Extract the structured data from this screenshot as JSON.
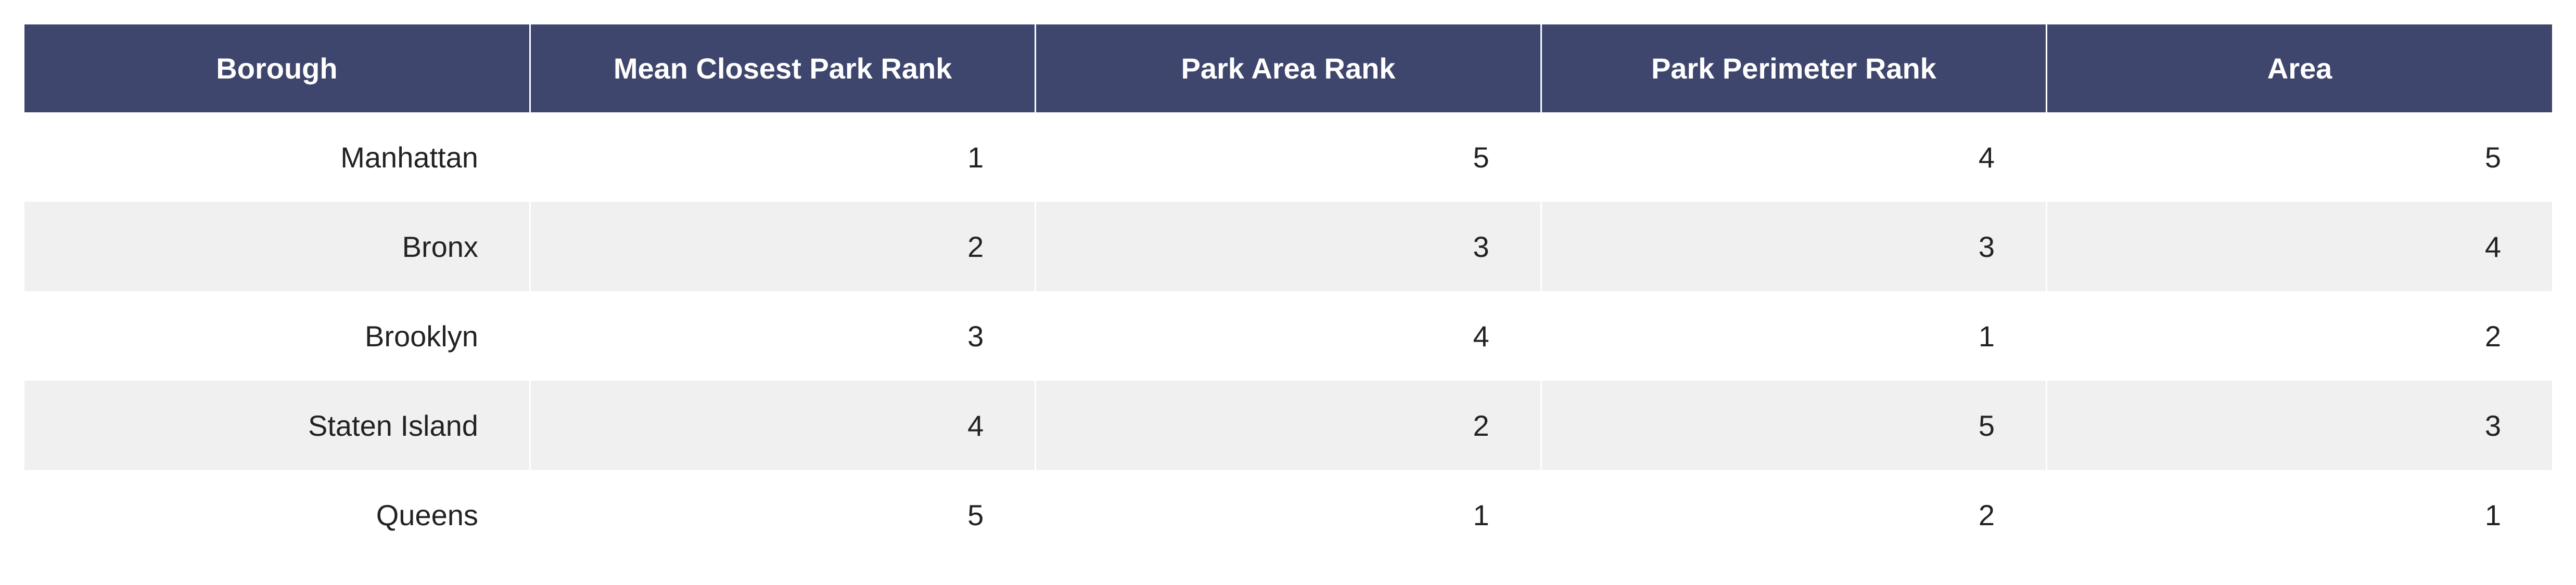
{
  "chart_data": {
    "type": "table",
    "columns": [
      "Borough",
      "Mean Closest Park Rank",
      "Park Area Rank",
      "Park Perimeter Rank",
      "Area"
    ],
    "rows": [
      [
        "Manhattan",
        "1",
        "5",
        "4",
        "5"
      ],
      [
        "Bronx",
        "2",
        "3",
        "3",
        "4"
      ],
      [
        "Brooklyn",
        "3",
        "4",
        "1",
        "2"
      ],
      [
        "Staten Island",
        "4",
        "2",
        "5",
        "3"
      ],
      [
        "Queens",
        "5",
        "1",
        "2",
        "1"
      ]
    ],
    "colors": {
      "header_background": "#3f466d",
      "header_text": "#ffffff",
      "row_band": "#f0f0f0",
      "row_plain": "#ffffff"
    }
  }
}
